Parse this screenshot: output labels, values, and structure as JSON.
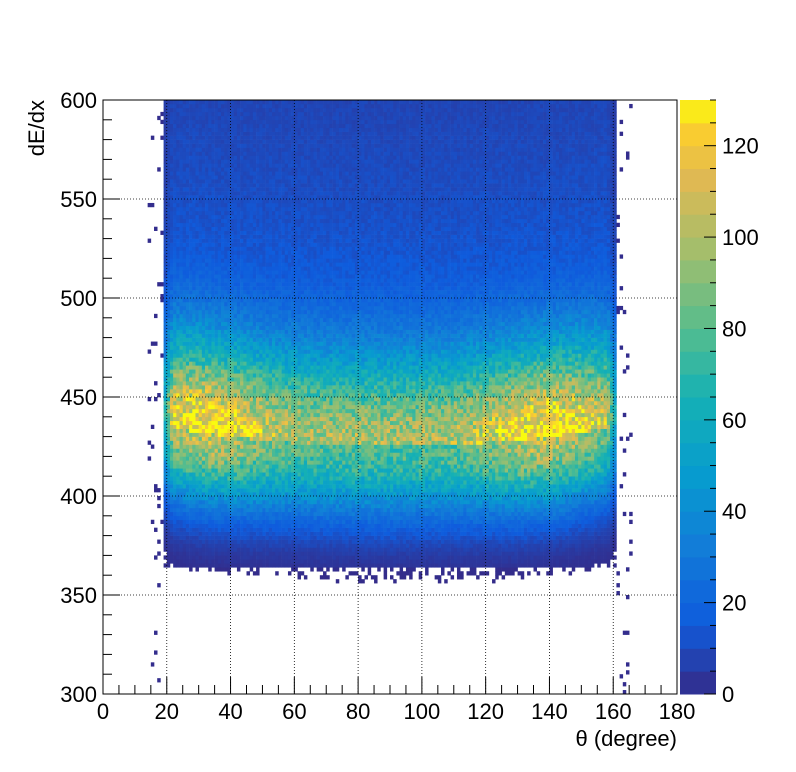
{
  "chart_data": {
    "type": "heatmap",
    "title": "",
    "xlabel": "θ (degree)",
    "ylabel": "dE/dx",
    "xlim": [
      0,
      180
    ],
    "ylim": [
      300,
      600
    ],
    "zlim": [
      0,
      130
    ],
    "x_ticks": [
      "0",
      "20",
      "40",
      "60",
      "80",
      "100",
      "120",
      "140",
      "160",
      "180"
    ],
    "y_ticks": [
      "300",
      "350",
      "400",
      "450",
      "500",
      "550",
      "600"
    ],
    "z_ticks": [
      "0",
      "20",
      "40",
      "60",
      "80",
      "100",
      "120"
    ],
    "grid": true,
    "colormap": "parula",
    "bins": {
      "x": 180,
      "y": 150
    },
    "band": {
      "theta_range": [
        19,
        161
      ],
      "peak_dedx_center": 425,
      "peak_dedx_at_edges": 435,
      "peak_counts": 105,
      "peak_theta_values": [
        32,
        138
      ],
      "low_dedx_cutoff": 355
    }
  }
}
